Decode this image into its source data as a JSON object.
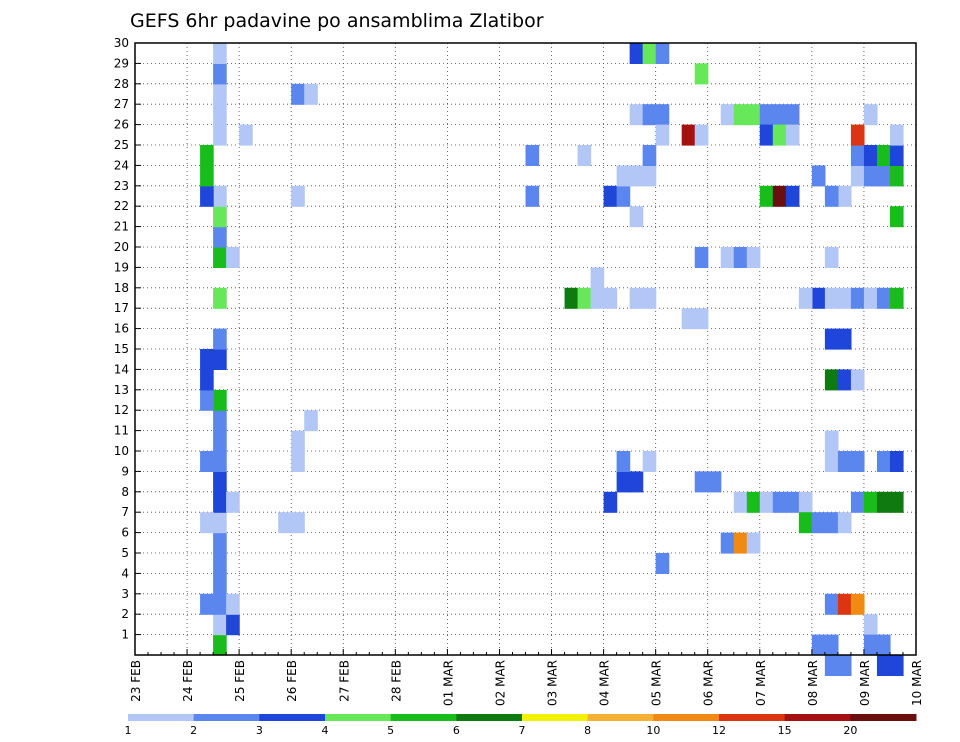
{
  "chart_data": {
    "type": "heatmap",
    "title": "GEFS 6hr padavine po ansamblima Zlatibor",
    "xlabel": "",
    "ylabel": "",
    "x_tick_labels": [
      "23 FEB",
      "24 FEB",
      "25 FEB",
      "26 FEB",
      "27 FEB",
      "28 FEB",
      "01 MAR",
      "02 MAR",
      "03 MAR",
      "04 MAR",
      "05 MAR",
      "06 MAR",
      "07 MAR",
      "08 MAR",
      "09 MAR",
      "10 MAR"
    ],
    "x_range_days": [
      0,
      15
    ],
    "y_tick_labels": [
      "1",
      "2",
      "3",
      "4",
      "5",
      "6",
      "7",
      "8",
      "9",
      "10",
      "11",
      "12",
      "13",
      "14",
      "15",
      "16",
      "17",
      "18",
      "19",
      "20",
      "21",
      "22",
      "23",
      "24",
      "25",
      "26",
      "27",
      "28",
      "29",
      "30"
    ],
    "ylim": [
      0,
      30
    ],
    "grid": true,
    "colorbar": {
      "placement": "bottom",
      "bounds": [
        1,
        2,
        3,
        4,
        5,
        6,
        7,
        8,
        10,
        12,
        15,
        20
      ],
      "labels": [
        "1",
        "2",
        "3",
        "4",
        "5",
        "6",
        "7",
        "8",
        "10",
        "12",
        "15",
        "20"
      ],
      "colors": [
        "#b3c7f7",
        "#5b86ee",
        "#1f45d9",
        "#66e85a",
        "#19bd1b",
        "#0f7a0f",
        "#f2f200",
        "#f5b134",
        "#f08a12",
        "#dc3512",
        "#a61010",
        "#6a0e0e"
      ]
    },
    "cells": [
      [
        1.5,
        0,
        4
      ],
      [
        1.5,
        1,
        0
      ],
      [
        1.5,
        2,
        1
      ],
      [
        1.5,
        3,
        1
      ],
      [
        1.5,
        4,
        1
      ],
      [
        1.5,
        5,
        1
      ],
      [
        1.5,
        6,
        0
      ],
      [
        1.5,
        7,
        2
      ],
      [
        1.5,
        8,
        2
      ],
      [
        1.5,
        9,
        1
      ],
      [
        1.5,
        10,
        1
      ],
      [
        1.5,
        11,
        1
      ],
      [
        1.5,
        12,
        4
      ],
      [
        1.5,
        14,
        2
      ],
      [
        1.5,
        15,
        1
      ],
      [
        1.5,
        17,
        3
      ],
      [
        1.5,
        19,
        4
      ],
      [
        1.5,
        20,
        1
      ],
      [
        1.5,
        21,
        3
      ],
      [
        1.5,
        22,
        0
      ],
      [
        1.5,
        25,
        0
      ],
      [
        1.5,
        26,
        0
      ],
      [
        1.5,
        27,
        0
      ],
      [
        1.5,
        28,
        1
      ],
      [
        1.5,
        29,
        0
      ],
      [
        1.25,
        2,
        1
      ],
      [
        1.25,
        6,
        0
      ],
      [
        1.25,
        9,
        1
      ],
      [
        1.25,
        12,
        1
      ],
      [
        1.25,
        13,
        2
      ],
      [
        1.25,
        14,
        2
      ],
      [
        1.25,
        22,
        2
      ],
      [
        1.25,
        23,
        4
      ],
      [
        1.25,
        24,
        4
      ],
      [
        1.75,
        1,
        2
      ],
      [
        1.75,
        2,
        0
      ],
      [
        1.75,
        7,
        0
      ],
      [
        1.75,
        19,
        0
      ],
      [
        2.0,
        25,
        0
      ],
      [
        2.75,
        6,
        0
      ],
      [
        3.0,
        6,
        0
      ],
      [
        3.0,
        9,
        0
      ],
      [
        3.0,
        10,
        0
      ],
      [
        3.0,
        22,
        0
      ],
      [
        3.0,
        27,
        1
      ],
      [
        3.25,
        27,
        0
      ],
      [
        3.25,
        11,
        0
      ],
      [
        7.5,
        22,
        1
      ],
      [
        7.5,
        24,
        1
      ],
      [
        8.5,
        24,
        0
      ],
      [
        8.25,
        17,
        5
      ],
      [
        8.5,
        17,
        3
      ],
      [
        8.75,
        17,
        0
      ],
      [
        8.75,
        18,
        0
      ],
      [
        9.0,
        17,
        0
      ],
      [
        9.0,
        7,
        2
      ],
      [
        9.25,
        8,
        2
      ],
      [
        9.25,
        9,
        1
      ],
      [
        9.5,
        8,
        2
      ],
      [
        9.75,
        9,
        0
      ],
      [
        9.0,
        22,
        2
      ],
      [
        9.25,
        22,
        1
      ],
      [
        9.5,
        21,
        0
      ],
      [
        9.25,
        23,
        0
      ],
      [
        9.5,
        23,
        0
      ],
      [
        9.75,
        23,
        0
      ],
      [
        9.75,
        24,
        1
      ],
      [
        9.5,
        17,
        0
      ],
      [
        9.75,
        17,
        0
      ],
      [
        9.5,
        29,
        2
      ],
      [
        9.75,
        29,
        3
      ],
      [
        10.0,
        29,
        1
      ],
      [
        9.5,
        26,
        0
      ],
      [
        9.75,
        26,
        1
      ],
      [
        10.0,
        26,
        1
      ],
      [
        10.0,
        25,
        0
      ],
      [
        10.0,
        4,
        1
      ],
      [
        10.5,
        16,
        0
      ],
      [
        10.75,
        16,
        0
      ],
      [
        10.75,
        19,
        1
      ],
      [
        10.5,
        25,
        10
      ],
      [
        10.75,
        25,
        0
      ],
      [
        10.75,
        28,
        3
      ],
      [
        10.75,
        8,
        1
      ],
      [
        11.0,
        8,
        1
      ],
      [
        11.25,
        5,
        1
      ],
      [
        11.5,
        5,
        8
      ],
      [
        11.75,
        5,
        0
      ],
      [
        11.5,
        7,
        0
      ],
      [
        11.75,
        7,
        4
      ],
      [
        12.0,
        7,
        0
      ],
      [
        12.25,
        7,
        1
      ],
      [
        12.5,
        7,
        1
      ],
      [
        12.75,
        7,
        0
      ],
      [
        11.25,
        19,
        0
      ],
      [
        11.5,
        19,
        1
      ],
      [
        11.75,
        19,
        0
      ],
      [
        11.25,
        26,
        0
      ],
      [
        11.5,
        26,
        3
      ],
      [
        11.75,
        26,
        3
      ],
      [
        12.0,
        26,
        1
      ],
      [
        12.25,
        26,
        1
      ],
      [
        12.5,
        26,
        1
      ],
      [
        12.0,
        25,
        2
      ],
      [
        12.25,
        25,
        3
      ],
      [
        12.5,
        25,
        0
      ],
      [
        12.0,
        22,
        4
      ],
      [
        12.25,
        22,
        11
      ],
      [
        12.5,
        22,
        2
      ],
      [
        12.75,
        6,
        4
      ],
      [
        13.0,
        6,
        1
      ],
      [
        13.25,
        6,
        1
      ],
      [
        13.5,
        6,
        0
      ],
      [
        13.0,
        23,
        1
      ],
      [
        13.0,
        0,
        1
      ],
      [
        13.25,
        0,
        1
      ],
      [
        13.0,
        17,
        2
      ],
      [
        12.75,
        17,
        0
      ],
      [
        13.25,
        17,
        0
      ],
      [
        13.5,
        17,
        0
      ],
      [
        13.75,
        17,
        1
      ],
      [
        14.0,
        17,
        0
      ],
      [
        14.25,
        17,
        1
      ],
      [
        14.5,
        17,
        4
      ],
      [
        13.25,
        15,
        2
      ],
      [
        13.5,
        15,
        2
      ],
      [
        13.25,
        13,
        5
      ],
      [
        13.5,
        13,
        2
      ],
      [
        13.75,
        13,
        0
      ],
      [
        13.25,
        2,
        1
      ],
      [
        13.5,
        2,
        9
      ],
      [
        13.75,
        2,
        8
      ],
      [
        13.25,
        9,
        0
      ],
      [
        13.25,
        10,
        0
      ],
      [
        13.5,
        9,
        1
      ],
      [
        13.75,
        9,
        1
      ],
      [
        14.25,
        9,
        1
      ],
      [
        14.5,
        9,
        2
      ],
      [
        13.25,
        19,
        0
      ],
      [
        13.5,
        22,
        0
      ],
      [
        13.25,
        22,
        1
      ],
      [
        13.75,
        7,
        1
      ],
      [
        14.0,
        7,
        4
      ],
      [
        14.25,
        7,
        5
      ],
      [
        14.5,
        7,
        5
      ],
      [
        13.75,
        23,
        0
      ],
      [
        14.0,
        23,
        1
      ],
      [
        14.25,
        23,
        1
      ],
      [
        14.5,
        23,
        4
      ],
      [
        13.75,
        24,
        1
      ],
      [
        14.0,
        24,
        2
      ],
      [
        14.25,
        24,
        4
      ],
      [
        14.5,
        24,
        2
      ],
      [
        13.75,
        25,
        9
      ],
      [
        14.5,
        25,
        0
      ],
      [
        14.0,
        26,
        0
      ],
      [
        14.5,
        21,
        4
      ],
      [
        14.0,
        1,
        0
      ],
      [
        14.0,
        0,
        1
      ],
      [
        14.25,
        0,
        1
      ],
      [
        14.25,
        -1,
        2
      ],
      [
        14.5,
        -1,
        2
      ],
      [
        13.25,
        -1,
        1
      ],
      [
        13.5,
        -1,
        1
      ]
    ]
  }
}
